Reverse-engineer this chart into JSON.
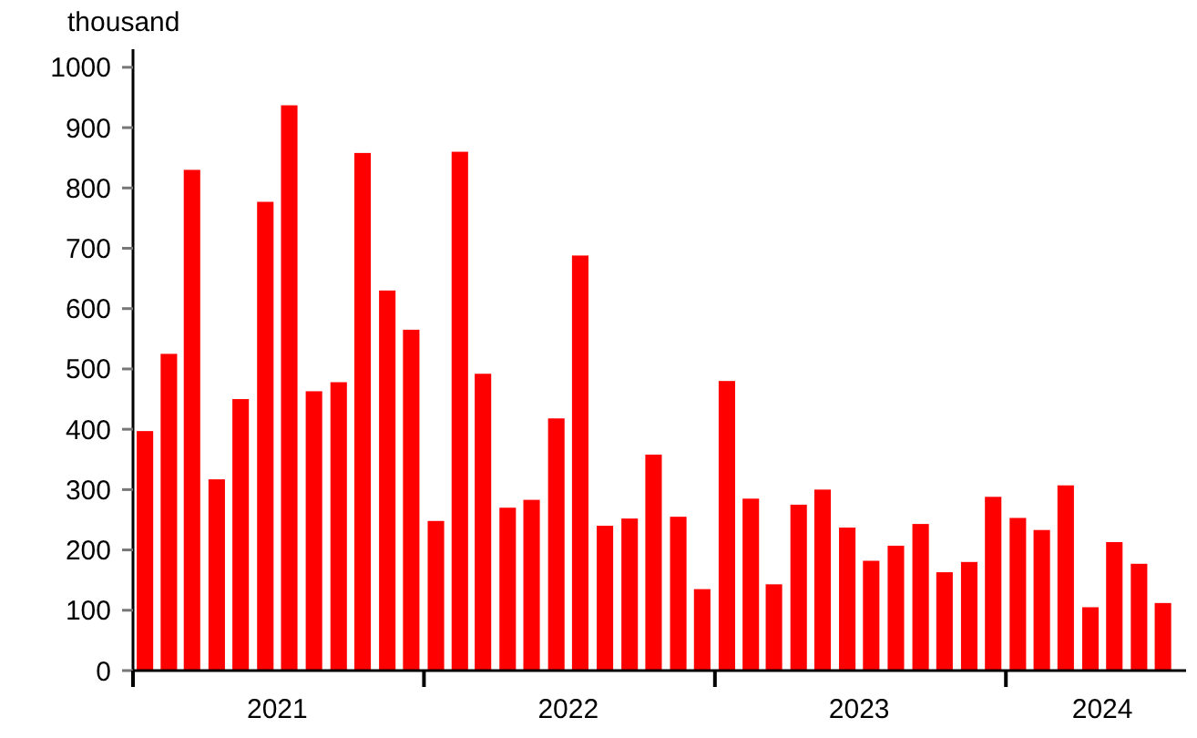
{
  "chart_data": {
    "type": "bar",
    "ylabel": "thousand",
    "color": "#ff0000",
    "x": [
      "2021-01-16",
      "2021-02-15",
      "2021-03-16",
      "2021-04-16",
      "2021-05-16",
      "2021-06-16",
      "2021-07-16",
      "2021-08-16",
      "2021-09-16",
      "2021-10-16",
      "2021-11-16",
      "2021-12-16",
      "2022-01-16",
      "2022-02-15",
      "2022-03-16",
      "2022-04-16",
      "2022-05-16",
      "2022-06-16",
      "2022-07-16",
      "2022-08-16",
      "2022-09-16",
      "2022-10-16",
      "2022-11-16",
      "2022-12-16",
      "2023-01-16",
      "2023-02-15",
      "2023-03-16",
      "2023-04-16",
      "2023-05-16",
      "2023-06-16",
      "2023-07-16",
      "2023-08-16",
      "2023-09-16",
      "2023-10-16",
      "2023-11-16",
      "2023-12-16",
      "2024-01-16",
      "2024-02-15",
      "2024-03-16",
      "2024-04-16",
      "2024-05-16",
      "2024-06-16",
      "2024-07-16"
    ],
    "values": [
      397,
      525,
      830,
      317,
      450,
      777,
      937,
      463,
      478,
      858,
      630,
      565,
      248,
      860,
      492,
      270,
      283,
      418,
      688,
      240,
      252,
      358,
      255,
      135,
      480,
      285,
      143,
      275,
      300,
      237,
      182,
      207,
      243,
      163,
      180,
      288,
      253,
      233,
      307,
      105,
      213,
      177,
      112
    ],
    "xlim": [
      "2021-01-01",
      "2024-08-14"
    ],
    "xticks": [
      {
        "value": "2021-01-01",
        "label": null
      },
      {
        "value": "2021-07-01",
        "label": "2021"
      },
      {
        "value": "2022-01-01",
        "label": null
      },
      {
        "value": "2022-07-01",
        "label": "2022"
      },
      {
        "value": "2023-01-01",
        "label": null
      },
      {
        "value": "2023-07-01",
        "label": "2023"
      },
      {
        "value": "2024-01-01",
        "label": null
      },
      {
        "value": "2024-05-01",
        "label": "2024"
      }
    ],
    "ylim": [
      0,
      1030
    ],
    "yticks": [
      0,
      100,
      200,
      300,
      400,
      500,
      600,
      700,
      800,
      900,
      1000
    ],
    "grid": false
  }
}
